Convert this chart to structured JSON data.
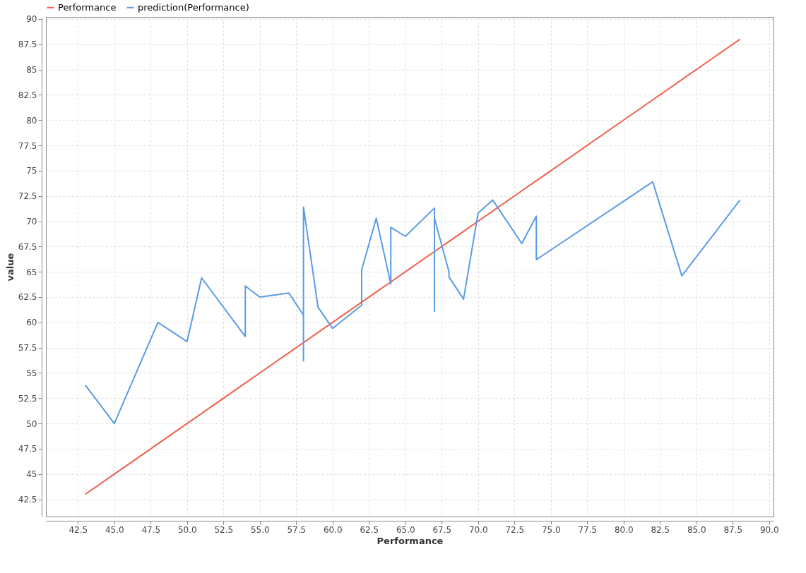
{
  "chart_data": {
    "type": "line",
    "xlabel": "Performance",
    "ylabel": "value",
    "xlim": [
      40.3,
      90.3
    ],
    "ylim": [
      40.8,
      90.2
    ],
    "xticks": [
      {
        "value": 42.5,
        "label": "42.5"
      },
      {
        "value": 45,
        "label": "45.0"
      },
      {
        "value": 47.5,
        "label": "47.5"
      },
      {
        "value": 50,
        "label": "50.0"
      },
      {
        "value": 52.5,
        "label": "52.5"
      },
      {
        "value": 55,
        "label": "55.0"
      },
      {
        "value": 57.5,
        "label": "57.5"
      },
      {
        "value": 60,
        "label": "60.0"
      },
      {
        "value": 62.5,
        "label": "62.5"
      },
      {
        "value": 65,
        "label": "65.0"
      },
      {
        "value": 67.5,
        "label": "67.5"
      },
      {
        "value": 70,
        "label": "70.0"
      },
      {
        "value": 72.5,
        "label": "72.5"
      },
      {
        "value": 75,
        "label": "75.0"
      },
      {
        "value": 77.5,
        "label": "77.5"
      },
      {
        "value": 80,
        "label": "80.0"
      },
      {
        "value": 82.5,
        "label": "82.5"
      },
      {
        "value": 85,
        "label": "85.0"
      },
      {
        "value": 87.5,
        "label": "87.5"
      },
      {
        "value": 90,
        "label": "90.0"
      }
    ],
    "yticks": [
      42.5,
      45,
      47.5,
      50,
      52.5,
      55,
      57.5,
      60,
      62.5,
      65,
      67.5,
      70,
      72.5,
      75,
      77.5,
      80,
      82.5,
      85,
      87.5,
      90
    ],
    "grid": true,
    "legend": "top left",
    "marker": "none",
    "line_style": "solid",
    "series": [
      {
        "name": "Performance",
        "color": "#f0604c",
        "x": [
          43,
          45,
          48,
          50,
          51,
          54,
          55,
          57,
          58,
          59,
          60,
          62,
          63,
          64,
          65,
          67,
          68,
          69,
          70,
          71,
          73,
          74,
          82,
          84,
          88
        ],
        "values": [
          43,
          45,
          48,
          50,
          51,
          54,
          55,
          57,
          58,
          59,
          60,
          62,
          63,
          64,
          65,
          67,
          68,
          69,
          70,
          71,
          73,
          74,
          82,
          84,
          88
        ]
      },
      {
        "name": "prediction(Performance)",
        "color": "#5b9be6",
        "x": [
          43,
          45,
          48,
          50,
          51,
          54,
          54,
          55,
          57,
          58,
          58,
          58,
          59,
          60,
          62,
          62,
          63,
          64,
          64,
          65,
          67,
          67,
          67,
          68,
          68,
          69,
          70,
          71,
          73,
          74,
          74,
          82,
          84,
          88
        ],
        "values": [
          53.8,
          50.0,
          60.0,
          58.1,
          64.4,
          58.6,
          63.6,
          62.5,
          62.9,
          60.7,
          56.2,
          71.4,
          61.5,
          59.4,
          61.7,
          65.2,
          70.3,
          63.8,
          69.4,
          68.5,
          71.3,
          61.1,
          70.3,
          65.0,
          64.5,
          62.3,
          70.8,
          72.1,
          67.8,
          70.5,
          66.2,
          73.9,
          64.6,
          72.1
        ]
      }
    ]
  }
}
